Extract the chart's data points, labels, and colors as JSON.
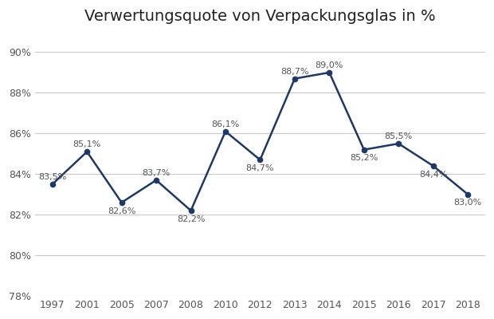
{
  "title": "Verwertungsquote von Verpackungsglas in %",
  "years": [
    1997,
    2001,
    2005,
    2007,
    2008,
    2010,
    2012,
    2013,
    2014,
    2015,
    2016,
    2017,
    2018
  ],
  "values": [
    83.5,
    85.1,
    82.6,
    83.7,
    82.2,
    86.1,
    84.7,
    88.7,
    89.0,
    85.2,
    85.5,
    84.4,
    83.0
  ],
  "labels": [
    "83,5%",
    "85,1%",
    "82,6%",
    "83,7%",
    "82,2%",
    "86,1%",
    "84,7%",
    "88,7%",
    "89,0%",
    "85,2%",
    "85,5%",
    "84,4%",
    "83,0%"
  ],
  "line_color": "#1f3864",
  "marker_color": "#1f3864",
  "background_color": "#ffffff",
  "grid_color": "#c8c8c8",
  "ylim": [
    78,
    91
  ],
  "yticks": [
    78,
    80,
    82,
    84,
    86,
    88,
    90
  ],
  "title_fontsize": 14,
  "label_fontsize": 8.0,
  "tick_fontsize": 9,
  "label_offsets_y": [
    0.35,
    0.35,
    -0.42,
    0.35,
    -0.42,
    0.35,
    -0.42,
    0.35,
    0.35,
    -0.42,
    0.35,
    -0.42,
    -0.42
  ]
}
